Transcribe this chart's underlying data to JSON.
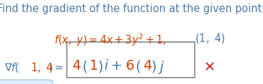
{
  "bg_color": "#ffffff",
  "title_text": "Find the gradient of the function at the given point.",
  "title_color": "#4a7aaa",
  "title_fontsize": 10.5,
  "line2_italic_color": "#cc4400",
  "line2_blue_color": "#4a7aaa",
  "line3_blue": "#4a7aaa",
  "line3_red": "#cc4400",
  "box_edge_color": "#888888",
  "box_inner_blue": "#4a7aaa",
  "box_inner_red": "#cc4400",
  "cross_color": "#cc2222",
  "cross_fontsize": 14
}
